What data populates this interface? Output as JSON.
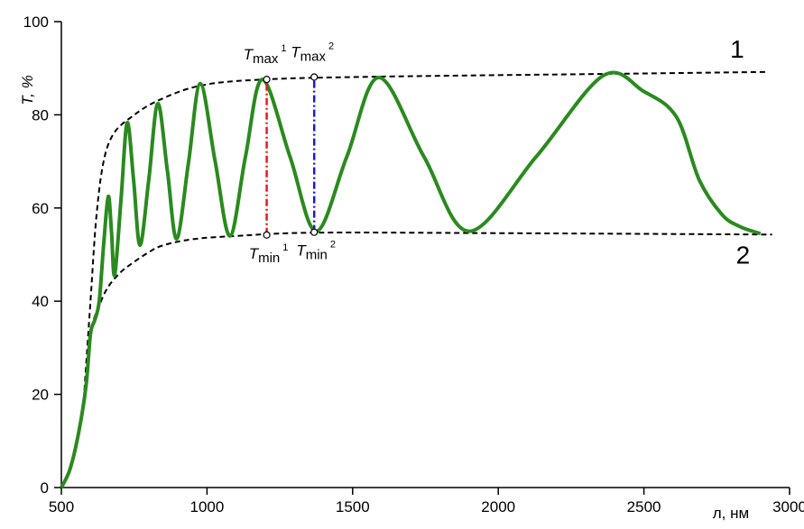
{
  "chart_data": {
    "type": "line",
    "xlabel": "л, нм",
    "ylabel": "T, %",
    "xlim": [
      500,
      3000
    ],
    "xticks": [
      500,
      1000,
      1500,
      2000,
      2500,
      3000
    ],
    "ylim": [
      0,
      100
    ],
    "yticks": [
      0,
      20,
      40,
      60,
      80,
      100
    ],
    "series": [
      {
        "name": "1",
        "color": "#000000",
        "dashed": true,
        "x": [
          575,
          600,
          620,
          645,
          680,
          740,
          830,
          980,
          1200,
          1600,
          2400,
          2920
        ],
        "values": [
          17,
          40,
          58,
          70,
          76,
          79.5,
          83,
          86.3,
          87.6,
          88.2,
          88.8,
          89.2
        ]
      },
      {
        "name": "2",
        "color": "#000000",
        "dashed": true,
        "x": [
          575,
          600,
          630,
          660,
          700,
          740,
          800,
          850,
          950,
          1100,
          1370,
          2000,
          2940
        ],
        "values": [
          17,
          33,
          39,
          43,
          46,
          48,
          50.5,
          52,
          53.3,
          54,
          54.7,
          54.6,
          54.3
        ]
      },
      {
        "color": "#2a8a1e",
        "dashed": false,
        "x": [
          500,
          530,
          560,
          585,
          600,
          615,
          630,
          645,
          661,
          672,
          683,
          705,
          726,
          748,
          770,
          800,
          831,
          864,
          896,
          937,
          977,
          1028,
          1079,
          1132,
          1190,
          1285,
          1375,
          1480,
          1590,
          1745,
          1900,
          2130,
          2360,
          2500,
          2612,
          2690,
          2768,
          2830,
          2900
        ],
        "values": [
          0,
          4,
          12,
          22,
          33,
          36,
          40,
          52,
          62.5,
          55,
          45.6,
          62,
          78.3,
          66,
          52,
          66,
          82.4,
          68,
          53.4,
          70,
          86.7,
          70,
          54,
          71,
          87.6,
          71,
          55,
          71,
          88,
          71,
          55,
          71,
          88.4,
          85,
          79.5,
          66,
          58.6,
          56,
          54.5
        ]
      }
    ],
    "segments": [
      {
        "x": 1205,
        "y": [
          54.2,
          87.6
        ],
        "color": "#e8191e",
        "top_label": {
          "base": "T",
          "sub": "max",
          "sup": "1"
        },
        "bottom_label": {
          "base": "T",
          "sub": "min",
          "sup": "1"
        }
      },
      {
        "x": 1368,
        "y": [
          54.8,
          88.1
        ],
        "color": "#1a1ad6",
        "top_label": {
          "base": "T",
          "sub": "max",
          "sup": "2"
        },
        "bottom_label": {
          "base": "T",
          "sub": "min",
          "sup": "2"
        }
      }
    ]
  }
}
